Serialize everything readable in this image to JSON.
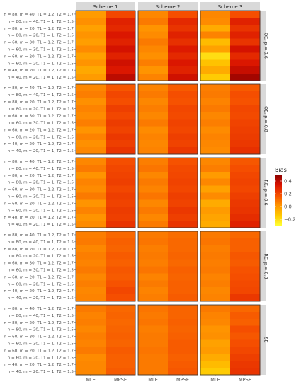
{
  "chart_data": {
    "type": "heatmap",
    "legend": {
      "title": "Bias",
      "ticks": [
        0.4,
        0.2,
        0.0,
        -0.2
      ],
      "tick_labels": [
        "0.4",
        "0.2",
        "0.0",
        "−0.2"
      ],
      "range": [
        -0.3,
        0.5
      ],
      "position": "right"
    },
    "color_scale": [
      "#FFFF33",
      "#FFC800",
      "#FF9400",
      "#F54E00",
      "#D91300",
      "#8B0000"
    ],
    "column_facets": [
      "Scheme 1",
      "Scheme 2",
      "Scheme 3"
    ],
    "row_facets": [
      "OE, p = 0.6",
      "OE, p = 0.8",
      "RE, p = 0.6",
      "RE, p = 0.8",
      "SE"
    ],
    "x_categories": [
      "MLE",
      "MPSE"
    ],
    "y_categories": [
      "n = 80, m = 40, T1 = 1.2, T2 = 1.7",
      "n = 80, m = 40, T1 = 1, T2 = 1.5",
      "n = 80, m = 20, T1 = 1.2, T2 = 1.7",
      "n = 80, m = 20, T1 = 1, T2 = 1.5",
      "n = 60, m = 30, T1 = 1.2, T2 = 1.7",
      "n = 60, m = 30, T1 = 1, T2 = 1.5",
      "n = 60, m = 20, T1 = 1.2, T2 = 1.7",
      "n = 60, m = 20, T1 = 1, T2 = 1.5",
      "n = 40, m = 20, T1 = 1.2, T2 = 1.7",
      "n = 40, m = 20, T1 = 1, T2 = 1.5"
    ],
    "values": [
      [
        [
          [
            0.0,
            0.2
          ],
          [
            0.03,
            0.3
          ],
          [
            -0.02,
            0.28
          ],
          [
            0.02,
            0.33
          ],
          [
            -0.01,
            0.3
          ],
          [
            0.04,
            0.35
          ],
          [
            -0.02,
            0.3
          ],
          [
            0.02,
            0.36
          ],
          [
            -0.04,
            0.33
          ],
          [
            0.0,
            0.4
          ]
        ],
        [
          [
            0.05,
            0.18
          ],
          [
            0.08,
            0.28
          ],
          [
            0.02,
            0.25
          ],
          [
            0.04,
            0.3
          ],
          [
            0.08,
            0.26
          ],
          [
            0.05,
            0.32
          ],
          [
            0.03,
            0.28
          ],
          [
            0.07,
            0.33
          ],
          [
            0.02,
            0.3
          ],
          [
            0.06,
            0.36
          ]
        ],
        [
          [
            0.05,
            0.18
          ],
          [
            0.04,
            0.3
          ],
          [
            -0.05,
            0.25
          ],
          [
            0.06,
            0.3
          ],
          [
            -0.1,
            0.25
          ],
          [
            -0.02,
            0.35
          ],
          [
            -0.2,
            0.28
          ],
          [
            -0.12,
            0.33
          ],
          [
            -0.05,
            0.38
          ],
          [
            -0.15,
            0.45
          ]
        ]
      ],
      [
        [
          [
            0.05,
            0.16
          ],
          [
            0.07,
            0.2
          ],
          [
            0.03,
            0.18
          ],
          [
            0.06,
            0.22
          ],
          [
            0.04,
            0.2
          ],
          [
            0.07,
            0.23
          ],
          [
            0.02,
            0.21
          ],
          [
            0.06,
            0.24
          ],
          [
            0.03,
            0.22
          ],
          [
            0.05,
            0.25
          ]
        ],
        [
          [
            0.06,
            0.15
          ],
          [
            0.08,
            0.18
          ],
          [
            0.05,
            0.17
          ],
          [
            0.07,
            0.2
          ],
          [
            0.05,
            0.19
          ],
          [
            0.08,
            0.21
          ],
          [
            0.04,
            0.2
          ],
          [
            0.06,
            0.22
          ],
          [
            0.05,
            0.21
          ],
          [
            0.06,
            0.24
          ]
        ],
        [
          [
            0.07,
            0.15
          ],
          [
            0.08,
            0.18
          ],
          [
            0.06,
            0.17
          ],
          [
            0.08,
            0.2
          ],
          [
            0.05,
            0.19
          ],
          [
            0.07,
            0.21
          ],
          [
            0.04,
            0.22
          ],
          [
            0.06,
            0.23
          ],
          [
            0.05,
            0.24
          ],
          [
            0.04,
            0.26
          ]
        ]
      ],
      [
        [
          [
            0.05,
            0.18
          ],
          [
            0.08,
            0.2
          ],
          [
            0.02,
            0.21
          ],
          [
            0.06,
            0.22
          ],
          [
            0.04,
            0.2
          ],
          [
            0.08,
            0.22
          ],
          [
            0.02,
            0.21
          ],
          [
            0.06,
            0.23
          ],
          [
            0.02,
            0.22
          ],
          [
            0.04,
            0.25
          ]
        ],
        [
          [
            0.07,
            0.17
          ],
          [
            0.09,
            0.19
          ],
          [
            0.05,
            0.2
          ],
          [
            0.08,
            0.21
          ],
          [
            0.06,
            0.2
          ],
          [
            0.09,
            0.22
          ],
          [
            0.05,
            0.21
          ],
          [
            0.08,
            0.24
          ],
          [
            0.05,
            0.22
          ],
          [
            0.08,
            0.25
          ]
        ],
        [
          [
            0.05,
            0.16
          ],
          [
            0.07,
            0.18
          ],
          [
            0.0,
            0.2
          ],
          [
            0.05,
            0.21
          ],
          [
            -0.02,
            0.2
          ],
          [
            0.04,
            0.22
          ],
          [
            -0.05,
            0.24
          ],
          [
            0.0,
            0.25
          ],
          [
            -0.03,
            0.27
          ],
          [
            -0.05,
            0.3
          ]
        ]
      ],
      [
        [
          [
            0.07,
            0.12
          ],
          [
            0.08,
            0.14
          ],
          [
            0.05,
            0.13
          ],
          [
            0.07,
            0.15
          ],
          [
            0.06,
            0.14
          ],
          [
            0.08,
            0.16
          ],
          [
            0.05,
            0.15
          ],
          [
            0.07,
            0.17
          ],
          [
            0.05,
            0.2
          ],
          [
            0.06,
            0.18
          ]
        ],
        [
          [
            0.08,
            0.11
          ],
          [
            0.09,
            0.12
          ],
          [
            0.07,
            0.12
          ],
          [
            0.08,
            0.13
          ],
          [
            0.07,
            0.12
          ],
          [
            0.09,
            0.14
          ],
          [
            0.06,
            0.13
          ],
          [
            0.08,
            0.14
          ],
          [
            0.06,
            0.14
          ],
          [
            0.07,
            0.15
          ]
        ],
        [
          [
            0.08,
            0.12
          ],
          [
            0.09,
            0.14
          ],
          [
            0.07,
            0.14
          ],
          [
            0.08,
            0.16
          ],
          [
            0.07,
            0.15
          ],
          [
            0.08,
            0.17
          ],
          [
            0.06,
            0.18
          ],
          [
            0.07,
            0.19
          ],
          [
            0.05,
            0.2
          ],
          [
            0.06,
            0.24
          ]
        ]
      ],
      [
        [
          [
            0.08,
            0.12
          ],
          [
            0.06,
            0.13
          ],
          [
            0.07,
            0.12
          ],
          [
            0.05,
            0.13
          ],
          [
            0.07,
            0.14
          ],
          [
            0.06,
            0.13
          ],
          [
            0.08,
            0.15
          ],
          [
            0.04,
            0.14
          ],
          [
            0.05,
            0.14
          ],
          [
            0.05,
            0.15
          ]
        ],
        [
          [
            0.09,
            0.13
          ],
          [
            0.08,
            0.13
          ],
          [
            0.09,
            0.14
          ],
          [
            0.07,
            0.13
          ],
          [
            0.08,
            0.14
          ],
          [
            0.08,
            0.15
          ],
          [
            0.09,
            0.15
          ],
          [
            0.08,
            0.14
          ],
          [
            0.08,
            0.15
          ],
          [
            0.08,
            0.16
          ]
        ],
        [
          [
            0.08,
            0.12
          ],
          [
            0.06,
            0.15
          ],
          [
            0.05,
            0.14
          ],
          [
            0.02,
            0.18
          ],
          [
            0.03,
            0.16
          ],
          [
            -0.02,
            0.18
          ],
          [
            0.0,
            0.2
          ],
          [
            -0.05,
            0.22
          ],
          [
            -0.1,
            0.24
          ],
          [
            -0.15,
            0.25
          ]
        ]
      ]
    ]
  }
}
